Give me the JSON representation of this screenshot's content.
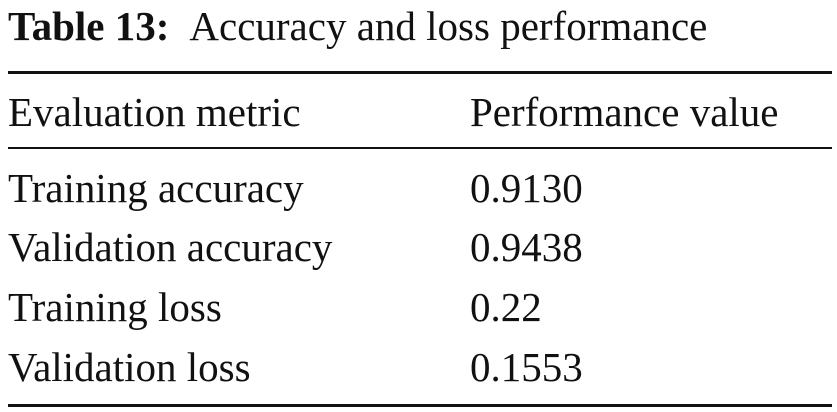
{
  "caption": {
    "label": "Table 13:",
    "text": "Accuracy and loss performance"
  },
  "table": {
    "headers": [
      "Evaluation metric",
      "Performance value"
    ],
    "rows": [
      {
        "metric": "Training accuracy",
        "value": "0.9130"
      },
      {
        "metric": "Validation accuracy",
        "value": "0.9438"
      },
      {
        "metric": "Training loss",
        "value": "0.22"
      },
      {
        "metric": "Validation loss",
        "value": "0.1553"
      }
    ]
  }
}
